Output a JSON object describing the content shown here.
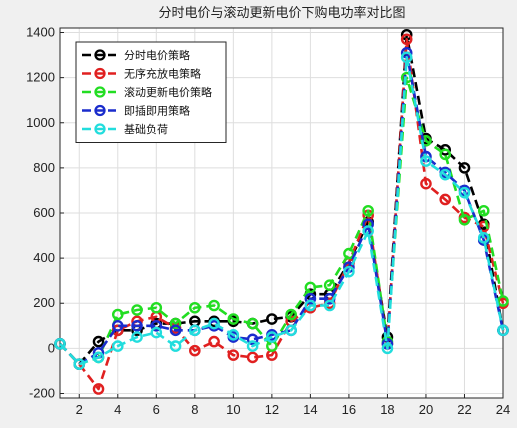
{
  "chart_data": {
    "type": "line",
    "title": "分时电价与滚动更新电价下购电功率对比图",
    "xlabel": "",
    "ylabel": "",
    "xlim": [
      1,
      24
    ],
    "ylim": [
      -220,
      1420
    ],
    "xticks": [
      2,
      4,
      6,
      8,
      10,
      12,
      14,
      16,
      18,
      20,
      22,
      24
    ],
    "yticks": [
      -200,
      0,
      200,
      400,
      600,
      800,
      1000,
      1200,
      1400
    ],
    "grid": true,
    "legend_position": "top-left",
    "x": [
      1,
      2,
      3,
      4,
      5,
      6,
      7,
      8,
      9,
      10,
      11,
      12,
      13,
      14,
      15,
      16,
      17,
      18,
      19,
      20,
      21,
      22,
      23,
      24
    ],
    "series": [
      {
        "name": "分时电价策略",
        "color": "#000000",
        "values": [
          20,
          -70,
          30,
          80,
          80,
          110,
          110,
          120,
          120,
          120,
          110,
          130,
          140,
          240,
          240,
          380,
          560,
          50,
          1390,
          930,
          880,
          800,
          550,
          80
        ]
      },
      {
        "name": "无序充放电策略",
        "color": "#e02020",
        "values": [
          20,
          -70,
          -180,
          80,
          120,
          140,
          90,
          -10,
          30,
          -30,
          -40,
          -30,
          120,
          180,
          200,
          380,
          590,
          20,
          1370,
          730,
          660,
          580,
          540,
          200
        ]
      },
      {
        "name": "滚动更新电价策略",
        "color": "#22dd22",
        "values": [
          20,
          -70,
          -40,
          150,
          170,
          180,
          110,
          180,
          190,
          130,
          110,
          10,
          150,
          270,
          280,
          420,
          610,
          30,
          1200,
          920,
          860,
          570,
          610,
          210
        ]
      },
      {
        "name": "即插即用策略",
        "color": "#1a2ccc",
        "values": [
          20,
          -70,
          -20,
          100,
          100,
          100,
          80,
          80,
          100,
          50,
          40,
          60,
          80,
          220,
          220,
          360,
          550,
          20,
          1310,
          850,
          780,
          700,
          480,
          80
        ]
      },
      {
        "name": "基础负荷",
        "color": "#22dddd",
        "values": [
          20,
          -70,
          -40,
          10,
          50,
          70,
          10,
          80,
          110,
          60,
          10,
          50,
          80,
          190,
          190,
          340,
          520,
          0,
          1290,
          830,
          770,
          690,
          490,
          80
        ]
      }
    ]
  }
}
